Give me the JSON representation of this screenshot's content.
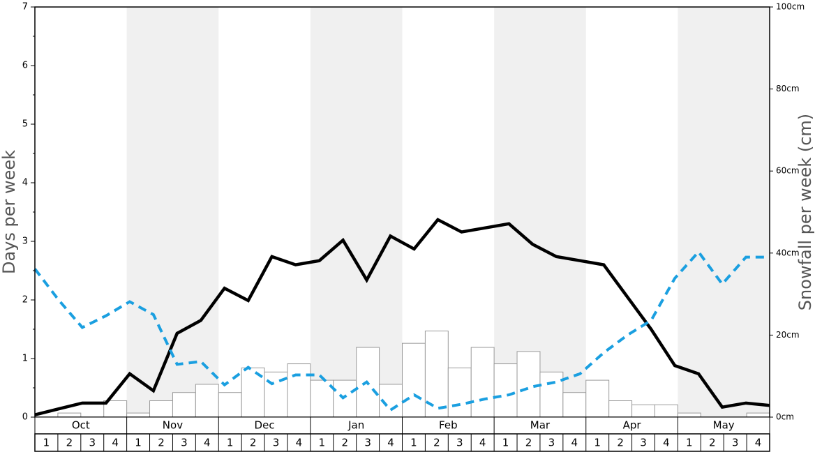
{
  "chart_data": {
    "type": "bar",
    "months": [
      "Oct",
      "Nov",
      "Dec",
      "Jan",
      "Feb",
      "Mar",
      "Apr",
      "May"
    ],
    "categories": [
      "1",
      "2",
      "3",
      "4",
      "1",
      "2",
      "3",
      "4",
      "1",
      "2",
      "3",
      "4",
      "1",
      "2",
      "3",
      "4",
      "1",
      "2",
      "3",
      "4",
      "1",
      "2",
      "3",
      "4",
      "1",
      "2",
      "3",
      "4",
      "1",
      "2",
      "3",
      "4"
    ],
    "y_label": "Days per week",
    "y2_label": "Snowfall per week (cm)",
    "ylim": [
      0,
      7
    ],
    "yticks": [
      0,
      1,
      2,
      3,
      4,
      5,
      6,
      7
    ],
    "y2lim": [
      0,
      100
    ],
    "y2ticks": [
      {
        "value": 0,
        "label": "0cm"
      },
      {
        "value": 20,
        "label": "20cm"
      },
      {
        "value": 40,
        "label": "40cm"
      },
      {
        "value": 60,
        "label": "60cm"
      },
      {
        "value": 80,
        "label": "80cm"
      },
      {
        "value": 100,
        "label": "100cm"
      }
    ],
    "series": [
      {
        "type": "bar",
        "axis": "y2",
        "color": "#ffffff",
        "values": [
          0,
          1,
          0,
          4,
          1,
          4,
          6,
          8,
          6,
          12,
          11,
          13,
          9,
          9,
          17,
          8,
          18,
          21,
          12,
          17,
          13,
          16,
          11,
          6,
          9,
          4,
          3,
          3,
          1,
          0,
          0,
          1
        ]
      },
      {
        "type": "line",
        "axis": "y",
        "color": "#000000",
        "dashed": false,
        "values": [
          0.04,
          0.14,
          0.24,
          0.24,
          0.74,
          0.45,
          1.43,
          1.65,
          2.2,
          1.99,
          2.74,
          2.6,
          2.67,
          3.02,
          2.34,
          3.09,
          2.87,
          3.37,
          3.16,
          3.23,
          3.3,
          2.95,
          2.74,
          2.67,
          2.6,
          2.05,
          1.5,
          0.88,
          0.74,
          0.17,
          0.24,
          0.2
        ]
      },
      {
        "type": "line",
        "axis": "y",
        "color": "#1a9fe0",
        "dashed": true,
        "values": [
          2.53,
          2.0,
          1.53,
          1.73,
          1.97,
          1.75,
          0.9,
          0.95,
          0.55,
          0.85,
          0.57,
          0.72,
          0.72,
          0.33,
          0.6,
          0.12,
          0.38,
          0.15,
          0.22,
          0.31,
          0.38,
          0.52,
          0.6,
          0.74,
          1.1,
          1.4,
          1.65,
          2.37,
          2.82,
          2.27,
          2.73,
          2.73
        ]
      }
    ]
  }
}
